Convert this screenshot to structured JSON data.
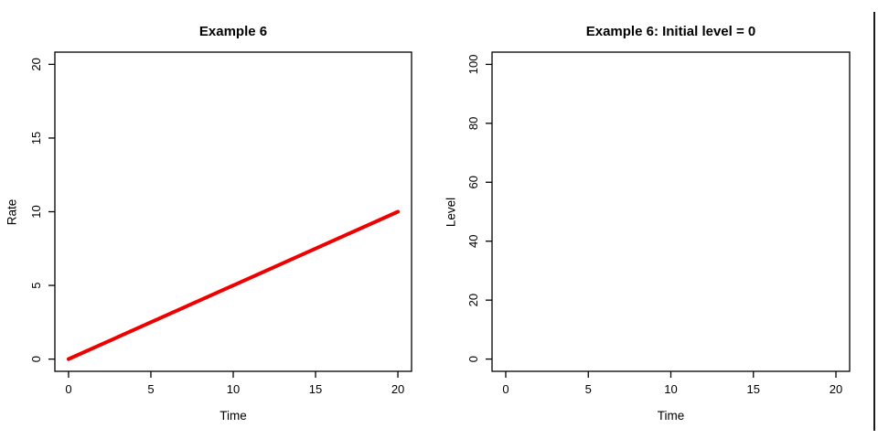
{
  "window": {
    "background": "#ffffff",
    "right_edge_border_color": "#1c1c1c"
  },
  "chart_data": [
    {
      "type": "line",
      "title": "Example 6",
      "xlabel": "Time",
      "ylabel": "Rate",
      "xlim": [
        -0.83,
        20.83
      ],
      "ylim": [
        -0.83,
        20.83
      ],
      "xticks": [
        0,
        5,
        10,
        15,
        20
      ],
      "yticks": [
        0,
        5,
        10,
        15,
        20
      ],
      "grid": false,
      "frame_color": "#000000",
      "tick_label_color": "#000000",
      "series": [
        {
          "name": "Rate",
          "color": "#ee0000",
          "line_width": 4,
          "x": [
            0,
            20
          ],
          "y": [
            0,
            10
          ]
        }
      ]
    },
    {
      "type": "line",
      "title": "Example 6: Initial level = 0",
      "xlabel": "Time",
      "ylabel": "Level",
      "xlim": [
        -0.83,
        20.83
      ],
      "ylim": [
        -4.16,
        104.16
      ],
      "xticks": [
        0,
        5,
        10,
        15,
        20
      ],
      "yticks": [
        0,
        20,
        40,
        60,
        80,
        100
      ],
      "grid": false,
      "frame_color": "#000000",
      "tick_label_color": "#000000",
      "series": []
    }
  ]
}
